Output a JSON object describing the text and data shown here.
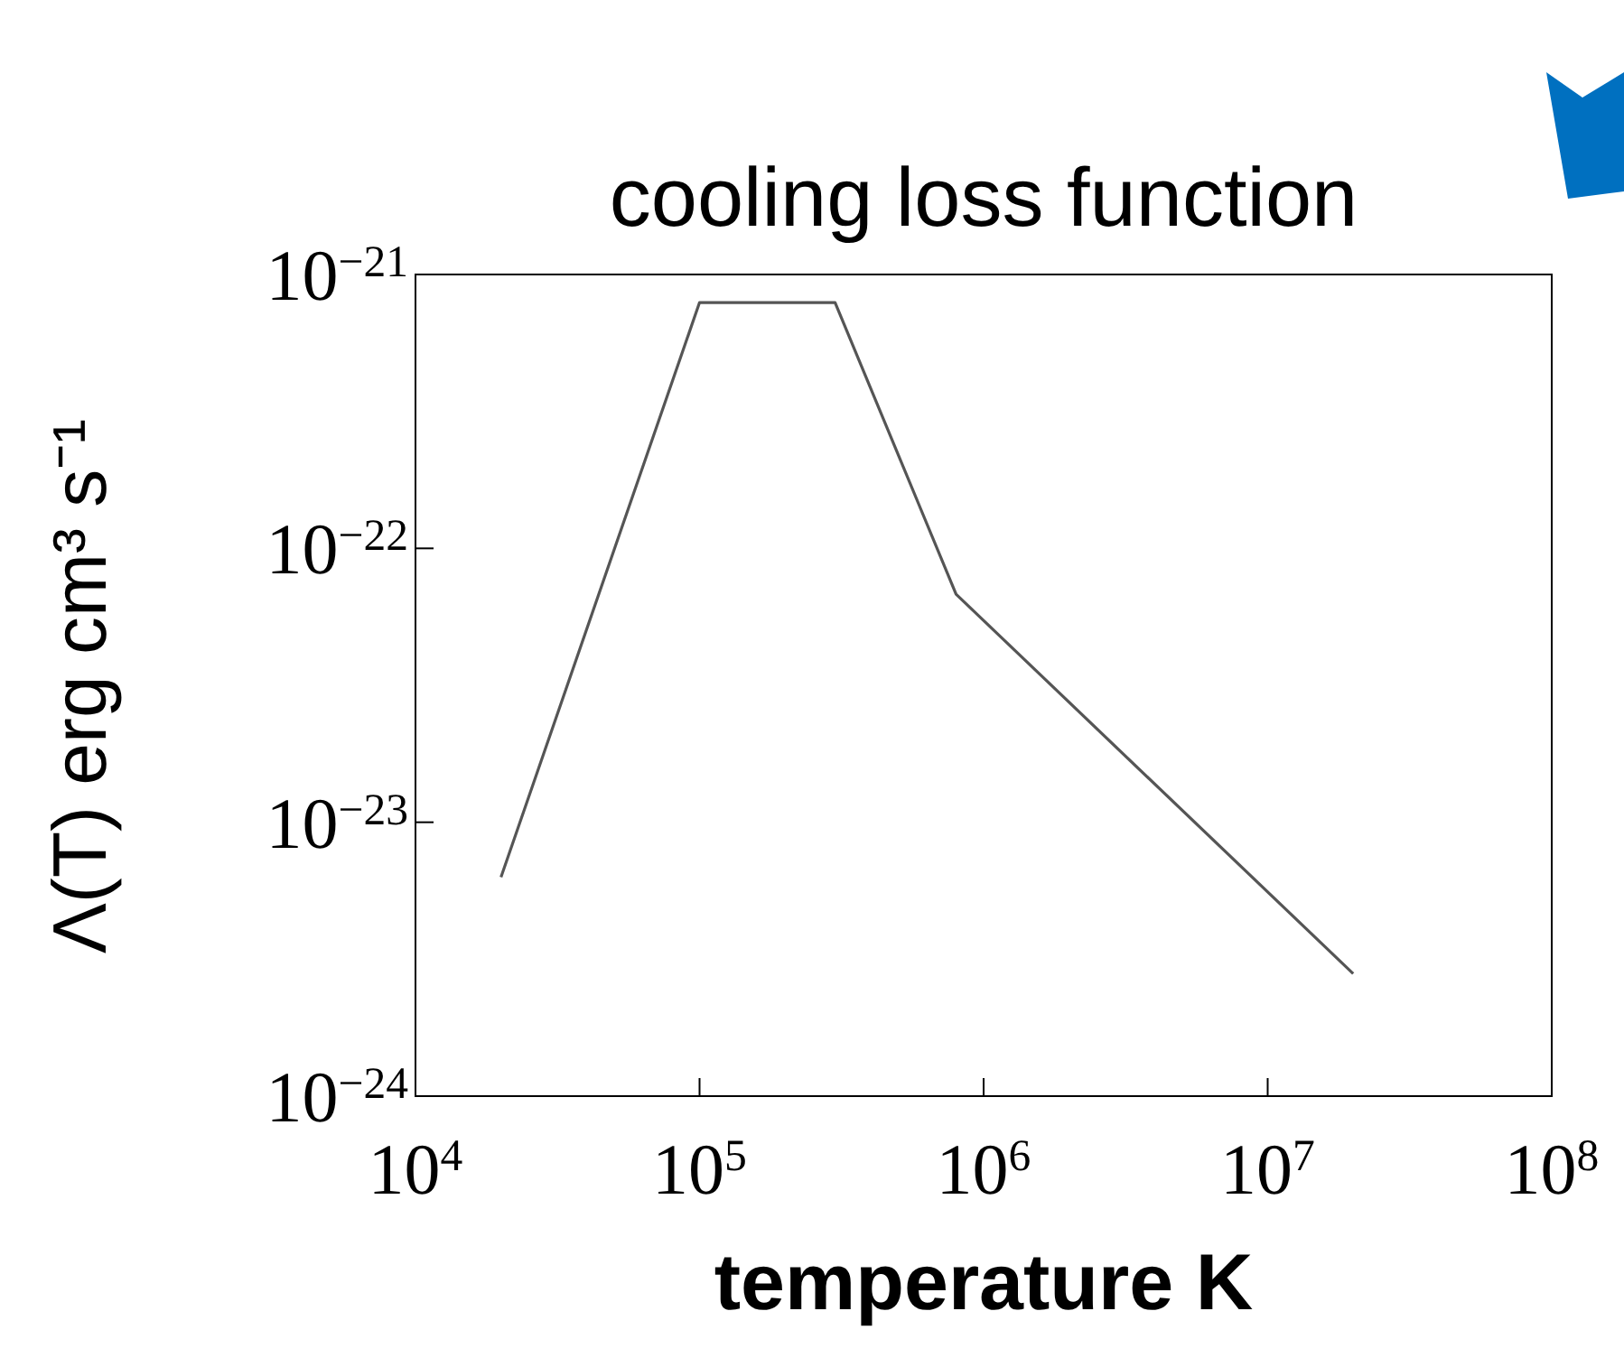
{
  "chart_data": {
    "type": "line",
    "title": "cooling loss function",
    "xlabel": "temperature K",
    "ylabel": "Λ(T) erg cm³ s⁻¹",
    "log": "xy",
    "grid": false,
    "legend": false,
    "marker": "none",
    "x": [
      20000,
      100000,
      300000,
      800000,
      20000000
    ],
    "series": [
      {
        "color": "#555555",
        "values": [
          6.3e-24,
          7.9e-22,
          7.9e-22,
          6.8e-23,
          2.8e-24
        ]
      }
    ],
    "xlim": [
      10000,
      100000000
    ],
    "xticks": [
      {
        "value": 10000,
        "label": "10$^{4}$"
      },
      {
        "value": 100000,
        "label": "10$^{5}$"
      },
      {
        "value": 1000000,
        "label": "10$^{6}$"
      },
      {
        "value": 10000000,
        "label": "10$^{7}$"
      },
      {
        "value": 100000000,
        "label": "10$^{8}$"
      }
    ],
    "ylim": [
      1e-24,
      1e-21
    ],
    "yticks": [
      {
        "value": 1e-24,
        "label": "10$^{−24}$"
      },
      {
        "value": 1e-23,
        "label": "10$^{−23}$"
      },
      {
        "value": 1e-22,
        "label": "10$^{−22}$"
      },
      {
        "value": 1e-21,
        "label": "10$^{−21}$"
      }
    ]
  }
}
